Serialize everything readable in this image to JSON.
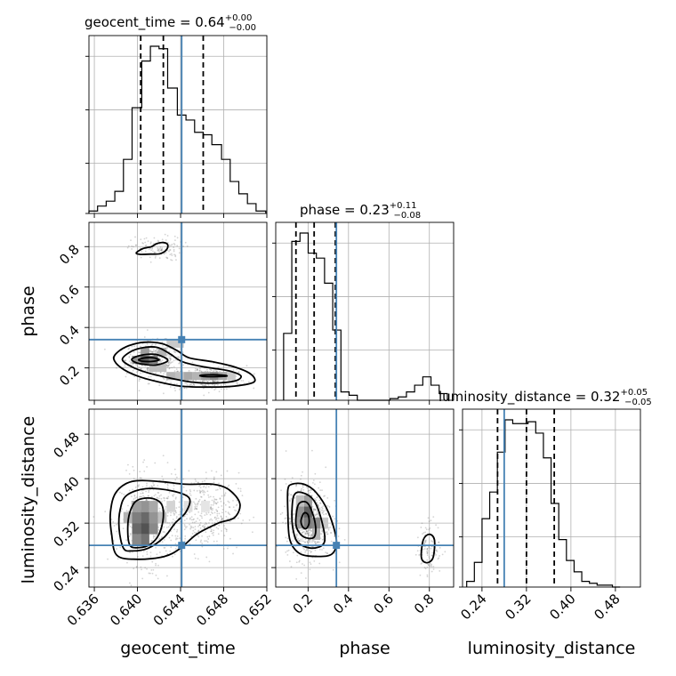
{
  "chart_data": {
    "type": "corner",
    "parameters": [
      "geocent_time",
      "phase",
      "luminosity_distance"
    ],
    "titles": [
      {
        "label": "geocent_time = 0.64",
        "plus": "+0.00",
        "minus": "−0.00"
      },
      {
        "label": "phase = 0.23",
        "plus": "+0.11",
        "minus": "−0.08"
      },
      {
        "label": "luminosity_distance = 0.32",
        "plus": "+0.05",
        "minus": "−0.05"
      }
    ],
    "ranges": [
      [
        0.6355,
        0.652
      ],
      [
        0.04,
        0.92
      ],
      [
        0.205,
        0.525
      ]
    ],
    "ticks": {
      "geocent_time": [
        "0.636",
        "0.640",
        "0.644",
        "0.648",
        "0.652"
      ],
      "phase": [
        "0.2",
        "0.4",
        "0.6",
        "0.8"
      ],
      "luminosity_distance": [
        "0.24",
        "0.32",
        "0.40",
        "0.48"
      ]
    },
    "tick_values": {
      "geocent_time": [
        0.636,
        0.64,
        0.644,
        0.648,
        0.652
      ],
      "phase": [
        0.2,
        0.4,
        0.6,
        0.8
      ],
      "luminosity_distance": [
        0.24,
        0.32,
        0.4,
        0.48
      ]
    },
    "truth": {
      "geocent_time": 0.6441,
      "phase": 0.34,
      "luminosity_distance": 0.28
    },
    "quantiles": {
      "geocent_time": [
        0.6403,
        0.6424,
        0.6461
      ],
      "phase": [
        0.14,
        0.23,
        0.335
      ],
      "luminosity_distance": [
        0.268,
        0.32,
        0.37
      ]
    },
    "hist_geocent_time": {
      "edges": [
        0.6355,
        0.6363,
        0.6371,
        0.6379,
        0.6387,
        0.6395,
        0.6404,
        0.6412,
        0.642,
        0.6428,
        0.6437,
        0.6445,
        0.6453,
        0.6461,
        0.6469,
        0.6478,
        0.6486,
        0.6494,
        0.6502,
        0.651,
        0.6519
      ],
      "counts": [
        1,
        3,
        5,
        9,
        22,
        43,
        62,
        68,
        67,
        51,
        40,
        38,
        33,
        32,
        28,
        22,
        13,
        8,
        4,
        1
      ]
    },
    "hist_phase": {
      "edges": [
        0.079,
        0.1195,
        0.16,
        0.2005,
        0.241,
        0.2815,
        0.322,
        0.3625,
        0.403,
        0.4435,
        0.484,
        0.5245,
        0.565,
        0.6055,
        0.646,
        0.6865,
        0.727,
        0.7675,
        0.808,
        0.8485,
        0.889
      ],
      "counts": [
        40,
        95,
        100,
        88,
        85,
        70,
        42,
        5,
        3,
        0,
        0,
        0,
        0,
        1,
        2,
        5,
        9,
        14,
        9,
        4
      ]
    },
    "hist_luminosity_distance": {
      "edges": [
        0.2125,
        0.2263,
        0.2401,
        0.2539,
        0.2677,
        0.2815,
        0.2953,
        0.3091,
        0.3229,
        0.3367,
        0.3505,
        0.3643,
        0.3781,
        0.3919,
        0.4057,
        0.4195,
        0.4333,
        0.4471,
        0.4609,
        0.4747,
        0.4885
      ],
      "counts": [
        3,
        13,
        36,
        50,
        71,
        88,
        86,
        86,
        87,
        81,
        68,
        44,
        25,
        14,
        8,
        3,
        2,
        1,
        1,
        0
      ]
    },
    "contours_phase_vs_geocent_time": [
      [
        [
          0.6399,
          0.77
        ],
        [
          0.6405,
          0.79
        ],
        [
          0.6413,
          0.8
        ],
        [
          0.6418,
          0.815
        ],
        [
          0.6424,
          0.82
        ],
        [
          0.6428,
          0.81
        ],
        [
          0.6427,
          0.785
        ],
        [
          0.6421,
          0.765
        ],
        [
          0.6412,
          0.763
        ],
        [
          0.6402,
          0.762
        ]
      ],
      [
        [
          0.6378,
          0.245
        ],
        [
          0.6382,
          0.28
        ],
        [
          0.6392,
          0.31
        ],
        [
          0.6406,
          0.327
        ],
        [
          0.6423,
          0.32
        ],
        [
          0.6437,
          0.285
        ],
        [
          0.6448,
          0.25
        ],
        [
          0.647,
          0.23
        ],
        [
          0.649,
          0.205
        ],
        [
          0.6505,
          0.17
        ],
        [
          0.6508,
          0.13
        ],
        [
          0.649,
          0.11
        ],
        [
          0.6465,
          0.105
        ],
        [
          0.644,
          0.11
        ],
        [
          0.642,
          0.13
        ],
        [
          0.64,
          0.16
        ],
        [
          0.6385,
          0.2
        ]
      ],
      [
        [
          0.6386,
          0.24
        ],
        [
          0.6392,
          0.275
        ],
        [
          0.6403,
          0.298
        ],
        [
          0.6418,
          0.302
        ],
        [
          0.643,
          0.27
        ],
        [
          0.6442,
          0.23
        ],
        [
          0.6462,
          0.205
        ],
        [
          0.6485,
          0.185
        ],
        [
          0.6496,
          0.16
        ],
        [
          0.649,
          0.135
        ],
        [
          0.647,
          0.125
        ],
        [
          0.645,
          0.13
        ],
        [
          0.643,
          0.15
        ],
        [
          0.641,
          0.175
        ],
        [
          0.6395,
          0.205
        ]
      ],
      [
        [
          0.6395,
          0.245
        ],
        [
          0.6403,
          0.262
        ],
        [
          0.6414,
          0.268
        ],
        [
          0.6423,
          0.257
        ],
        [
          0.6428,
          0.235
        ],
        [
          0.6418,
          0.215
        ],
        [
          0.6405,
          0.218
        ],
        [
          0.6397,
          0.23
        ]
      ],
      [
        [
          0.6401,
          0.24
        ],
        [
          0.6407,
          0.25
        ],
        [
          0.6415,
          0.25
        ],
        [
          0.642,
          0.24
        ],
        [
          0.6413,
          0.232
        ],
        [
          0.6405,
          0.233
        ]
      ],
      [
        [
          0.6458,
          0.162
        ],
        [
          0.6466,
          0.166
        ],
        [
          0.6478,
          0.165
        ],
        [
          0.6483,
          0.16
        ],
        [
          0.6475,
          0.157
        ],
        [
          0.6463,
          0.157
        ]
      ]
    ],
    "contours_luminosity_distance_vs_geocent_time": [
      [
        [
          0.6381,
          0.262
        ],
        [
          0.6376,
          0.3
        ],
        [
          0.6375,
          0.34
        ],
        [
          0.638,
          0.375
        ],
        [
          0.6395,
          0.395
        ],
        [
          0.642,
          0.395
        ],
        [
          0.6445,
          0.39
        ],
        [
          0.647,
          0.39
        ],
        [
          0.6485,
          0.38
        ],
        [
          0.6495,
          0.355
        ],
        [
          0.649,
          0.33
        ],
        [
          0.6475,
          0.32
        ],
        [
          0.6455,
          0.3
        ],
        [
          0.644,
          0.275
        ],
        [
          0.6425,
          0.26
        ],
        [
          0.64,
          0.255
        ]
      ],
      [
        [
          0.6387,
          0.275
        ],
        [
          0.6383,
          0.31
        ],
        [
          0.6384,
          0.345
        ],
        [
          0.639,
          0.37
        ],
        [
          0.6408,
          0.382
        ],
        [
          0.6432,
          0.378
        ],
        [
          0.6448,
          0.365
        ],
        [
          0.6445,
          0.34
        ],
        [
          0.6435,
          0.32
        ],
        [
          0.6425,
          0.295
        ],
        [
          0.641,
          0.275
        ],
        [
          0.6395,
          0.27
        ]
      ],
      [
        [
          0.6393,
          0.28
        ],
        [
          0.6391,
          0.31
        ],
        [
          0.6393,
          0.34
        ],
        [
          0.6399,
          0.36
        ],
        [
          0.6412,
          0.365
        ],
        [
          0.6422,
          0.355
        ],
        [
          0.6424,
          0.33
        ],
        [
          0.642,
          0.3
        ],
        [
          0.6412,
          0.282
        ],
        [
          0.6402,
          0.276
        ]
      ]
    ],
    "contours_luminosity_distance_vs_phase": [
      [
        [
          0.1,
          0.34
        ],
        [
          0.1,
          0.38
        ],
        [
          0.12,
          0.39
        ],
        [
          0.18,
          0.39
        ],
        [
          0.24,
          0.375
        ],
        [
          0.3,
          0.34
        ],
        [
          0.34,
          0.29
        ],
        [
          0.32,
          0.265
        ],
        [
          0.25,
          0.26
        ],
        [
          0.16,
          0.265
        ],
        [
          0.11,
          0.29
        ]
      ],
      [
        [
          0.12,
          0.34
        ],
        [
          0.13,
          0.37
        ],
        [
          0.17,
          0.375
        ],
        [
          0.23,
          0.36
        ],
        [
          0.27,
          0.32
        ],
        [
          0.28,
          0.285
        ],
        [
          0.22,
          0.275
        ],
        [
          0.15,
          0.285
        ],
        [
          0.125,
          0.31
        ]
      ],
      [
        [
          0.14,
          0.33
        ],
        [
          0.155,
          0.355
        ],
        [
          0.2,
          0.355
        ],
        [
          0.235,
          0.32
        ],
        [
          0.23,
          0.295
        ],
        [
          0.18,
          0.295
        ],
        [
          0.145,
          0.31
        ]
      ],
      [
        [
          0.165,
          0.325
        ],
        [
          0.18,
          0.338
        ],
        [
          0.2,
          0.335
        ],
        [
          0.205,
          0.32
        ],
        [
          0.19,
          0.31
        ],
        [
          0.172,
          0.314
        ]
      ],
      [
        [
          0.76,
          0.26
        ],
        [
          0.77,
          0.29
        ],
        [
          0.8,
          0.3
        ],
        [
          0.825,
          0.29
        ],
        [
          0.82,
          0.26
        ],
        [
          0.8,
          0.25
        ],
        [
          0.775,
          0.25
        ]
      ]
    ],
    "density_phase_vs_geocent_time": [
      {
        "x": 0.6395,
        "y": 0.22,
        "w": 0.0008,
        "h": 0.04,
        "v": 0.5
      },
      {
        "x": 0.6403,
        "y": 0.22,
        "w": 0.0008,
        "h": 0.04,
        "v": 0.75
      },
      {
        "x": 0.6411,
        "y": 0.22,
        "w": 0.0008,
        "h": 0.04,
        "v": 0.6
      },
      {
        "x": 0.6403,
        "y": 0.26,
        "w": 0.0008,
        "h": 0.04,
        "v": 0.45
      },
      {
        "x": 0.6419,
        "y": 0.26,
        "w": 0.0008,
        "h": 0.04,
        "v": 0.35
      },
      {
        "x": 0.6411,
        "y": 0.18,
        "w": 0.0008,
        "h": 0.04,
        "v": 0.3
      },
      {
        "x": 0.6427,
        "y": 0.3,
        "w": 0.0008,
        "h": 0.04,
        "v": 0.25
      },
      {
        "x": 0.6435,
        "y": 0.3,
        "w": 0.0008,
        "h": 0.04,
        "v": 0.25
      },
      {
        "x": 0.6419,
        "y": 0.18,
        "w": 0.0008,
        "h": 0.04,
        "v": 0.3
      },
      {
        "x": 0.6427,
        "y": 0.14,
        "w": 0.0008,
        "h": 0.04,
        "v": 0.35
      },
      {
        "x": 0.6435,
        "y": 0.14,
        "w": 0.0008,
        "h": 0.04,
        "v": 0.3
      },
      {
        "x": 0.6443,
        "y": 0.14,
        "w": 0.0008,
        "h": 0.04,
        "v": 0.4
      },
      {
        "x": 0.6451,
        "y": 0.14,
        "w": 0.0008,
        "h": 0.04,
        "v": 0.35
      },
      {
        "x": 0.6459,
        "y": 0.14,
        "w": 0.0008,
        "h": 0.04,
        "v": 0.45
      },
      {
        "x": 0.6467,
        "y": 0.14,
        "w": 0.0008,
        "h": 0.04,
        "v": 0.55
      },
      {
        "x": 0.6475,
        "y": 0.14,
        "w": 0.0008,
        "h": 0.04,
        "v": 0.4
      },
      {
        "x": 0.6483,
        "y": 0.14,
        "w": 0.0008,
        "h": 0.04,
        "v": 0.25
      }
    ],
    "density_luminosity_distance_vs_geocent_time": [
      {
        "x": 0.6395,
        "y": 0.28,
        "w": 0.0008,
        "h": 0.02,
        "v": 0.55
      },
      {
        "x": 0.6395,
        "y": 0.3,
        "w": 0.0008,
        "h": 0.02,
        "v": 0.7
      },
      {
        "x": 0.6395,
        "y": 0.32,
        "w": 0.0008,
        "h": 0.02,
        "v": 0.6
      },
      {
        "x": 0.6395,
        "y": 0.34,
        "w": 0.0008,
        "h": 0.02,
        "v": 0.45
      },
      {
        "x": 0.6403,
        "y": 0.28,
        "w": 0.0008,
        "h": 0.02,
        "v": 0.65
      },
      {
        "x": 0.6403,
        "y": 0.3,
        "w": 0.0008,
        "h": 0.02,
        "v": 0.8
      },
      {
        "x": 0.6403,
        "y": 0.32,
        "w": 0.0008,
        "h": 0.02,
        "v": 0.7
      },
      {
        "x": 0.6403,
        "y": 0.34,
        "w": 0.0008,
        "h": 0.02,
        "v": 0.5
      },
      {
        "x": 0.6411,
        "y": 0.3,
        "w": 0.0008,
        "h": 0.02,
        "v": 0.55
      },
      {
        "x": 0.6411,
        "y": 0.32,
        "w": 0.0008,
        "h": 0.02,
        "v": 0.5
      },
      {
        "x": 0.6411,
        "y": 0.34,
        "w": 0.0008,
        "h": 0.02,
        "v": 0.4
      },
      {
        "x": 0.6387,
        "y": 0.32,
        "w": 0.0008,
        "h": 0.02,
        "v": 0.35
      },
      {
        "x": 0.6419,
        "y": 0.32,
        "w": 0.0008,
        "h": 0.02,
        "v": 0.3
      },
      {
        "x": 0.6427,
        "y": 0.34,
        "w": 0.0008,
        "h": 0.02,
        "v": 0.2
      },
      {
        "x": 0.6443,
        "y": 0.34,
        "w": 0.0008,
        "h": 0.02,
        "v": 0.15
      },
      {
        "x": 0.6459,
        "y": 0.34,
        "w": 0.0008,
        "h": 0.02,
        "v": 0.12
      }
    ],
    "density_luminosity_distance_vs_phase": [
      {
        "x": 0.14,
        "y": 0.31,
        "w": 0.04,
        "h": 0.02,
        "v": 0.45
      },
      {
        "x": 0.14,
        "y": 0.33,
        "w": 0.04,
        "h": 0.02,
        "v": 0.5
      },
      {
        "x": 0.18,
        "y": 0.31,
        "w": 0.04,
        "h": 0.02,
        "v": 0.6
      },
      {
        "x": 0.18,
        "y": 0.33,
        "w": 0.04,
        "h": 0.02,
        "v": 0.75
      },
      {
        "x": 0.18,
        "y": 0.35,
        "w": 0.04,
        "h": 0.02,
        "v": 0.45
      },
      {
        "x": 0.22,
        "y": 0.31,
        "w": 0.04,
        "h": 0.02,
        "v": 0.55
      },
      {
        "x": 0.22,
        "y": 0.29,
        "w": 0.04,
        "h": 0.02,
        "v": 0.35
      },
      {
        "x": 0.14,
        "y": 0.35,
        "w": 0.04,
        "h": 0.02,
        "v": 0.3
      },
      {
        "x": 0.26,
        "y": 0.31,
        "w": 0.04,
        "h": 0.02,
        "v": 0.25
      }
    ]
  }
}
